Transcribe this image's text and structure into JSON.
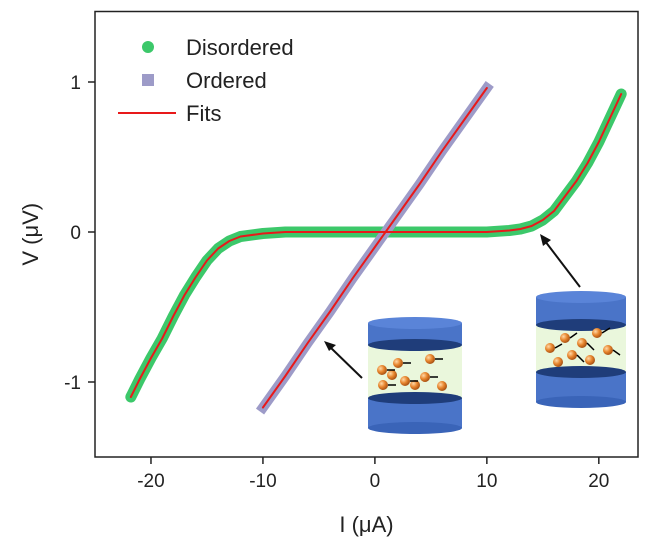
{
  "chart_data": {
    "type": "line",
    "xlabel": "I (μA)",
    "ylabel": "V (μV)",
    "xlim": [
      -25,
      23.5
    ],
    "ylim": [
      -1.5,
      1.47
    ],
    "xticks": [
      -20,
      -10,
      0,
      10,
      20
    ],
    "yticks": [
      -1,
      0,
      1
    ],
    "legend": "upper left",
    "series": [
      {
        "name": "Disordered",
        "color": "#3cc86a",
        "marker": "circle",
        "x": [
          -21.8,
          -21,
          -20,
          -19,
          -18,
          -17,
          -16,
          -15,
          -14,
          -13,
          -12,
          -10,
          -8,
          -6,
          -4,
          -2,
          0,
          2,
          4,
          6,
          8,
          10,
          12,
          13,
          14,
          15,
          16,
          17,
          18,
          19,
          20,
          21,
          22
        ],
        "values": [
          -1.1,
          -0.98,
          -0.84,
          -0.71,
          -0.56,
          -0.42,
          -0.3,
          -0.19,
          -0.11,
          -0.06,
          -0.03,
          -0.01,
          0,
          0,
          0,
          0,
          0,
          0,
          0,
          0,
          0,
          0,
          0.01,
          0.02,
          0.04,
          0.08,
          0.14,
          0.24,
          0.34,
          0.46,
          0.6,
          0.76,
          0.92
        ]
      },
      {
        "name": "Ordered",
        "color": "#9d9bc8",
        "marker": "square",
        "x": [
          -10,
          -8,
          -6,
          -4,
          -2,
          0,
          2,
          4,
          6,
          8,
          10
        ],
        "values": [
          -1.17,
          -0.96,
          -0.74,
          -0.53,
          -0.31,
          -0.1,
          0.11,
          0.32,
          0.54,
          0.75,
          0.96
        ]
      },
      {
        "name": "Fits",
        "color": "#e8191a",
        "marker": "line",
        "x": [
          -21.8,
          -21,
          -20,
          -19,
          -18,
          -17,
          -16,
          -15,
          -14,
          -13,
          -12,
          -10,
          -8,
          -6,
          -4,
          -2,
          0,
          2,
          4,
          6,
          8,
          10,
          12,
          13,
          14,
          15,
          16,
          17,
          18,
          19,
          20,
          21,
          22,
          null,
          -10,
          -8,
          -6,
          -4,
          -2,
          0,
          2,
          4,
          6,
          8,
          10
        ],
        "values": [
          -1.1,
          -0.98,
          -0.84,
          -0.71,
          -0.56,
          -0.42,
          -0.3,
          -0.19,
          -0.11,
          -0.06,
          -0.03,
          -0.01,
          0,
          0,
          0,
          0,
          0,
          0,
          0,
          0,
          0,
          0,
          0.01,
          0.02,
          0.04,
          0.08,
          0.14,
          0.24,
          0.34,
          0.46,
          0.6,
          0.76,
          0.92,
          null,
          -1.17,
          -0.96,
          -0.74,
          -0.53,
          -0.31,
          -0.1,
          0.11,
          0.32,
          0.54,
          0.75,
          0.96
        ]
      }
    ]
  }
}
